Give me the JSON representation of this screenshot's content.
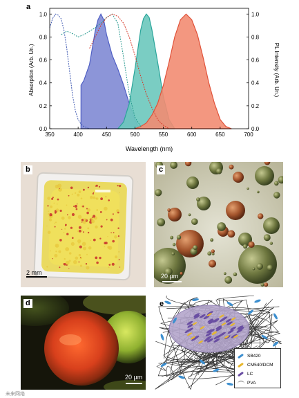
{
  "panels": {
    "a": {
      "label": "a"
    },
    "b": {
      "label": "b",
      "scale": "2 mm"
    },
    "c": {
      "label": "c",
      "scale": "20 µm"
    },
    "d": {
      "label": "d",
      "scale": "20 µm"
    },
    "e": {
      "label": "e",
      "legend": [
        {
          "label": "SB420",
          "color": "#3d8fcf"
        },
        {
          "label": "CM540/DCM",
          "color": "#e8b72e"
        },
        {
          "label": "LC",
          "color": "#6a4fa3"
        },
        {
          "label": "PVA",
          "color": "#555555"
        }
      ]
    }
  },
  "watermark": "未来网络",
  "chart_data": {
    "type": "area",
    "xlabel": "Wavelength (nm)",
    "ylabel": "Absorption (Arb. Un.)",
    "y2label": "PL Intensity (Arb. Un.)",
    "xlim": [
      350,
      700
    ],
    "ylim": [
      0,
      1.05
    ],
    "xticks": [
      "350",
      "400",
      "450",
      "500",
      "550",
      "600",
      "650",
      "700"
    ],
    "yticks": [
      "0.0",
      "0.2",
      "0.4",
      "0.6",
      "0.8",
      "1.0"
    ],
    "series": [
      {
        "kind": "emission",
        "color": "#4f5fc4",
        "fill": "#7f89d4",
        "x": [
          405,
          410,
          420,
          430,
          435,
          440,
          445,
          450,
          460,
          470,
          480,
          490,
          500,
          505,
          510
        ],
        "y": [
          0.38,
          0.42,
          0.56,
          0.85,
          0.95,
          1.0,
          0.95,
          0.82,
          0.64,
          0.52,
          0.38,
          0.22,
          0.08,
          0.03,
          0
        ]
      },
      {
        "kind": "emission",
        "color": "#2aa59a",
        "fill": "#6cc8bd",
        "x": [
          470,
          480,
          490,
          500,
          510,
          515,
          520,
          525,
          530,
          540,
          550,
          560,
          570
        ],
        "y": [
          0,
          0.06,
          0.22,
          0.52,
          0.86,
          0.96,
          1.0,
          0.97,
          0.86,
          0.58,
          0.28,
          0.08,
          0
        ]
      },
      {
        "kind": "emission",
        "color": "#e0523a",
        "fill": "#f28c72",
        "x": [
          500,
          510,
          520,
          530,
          540,
          550,
          560,
          570,
          580,
          590,
          600,
          610,
          620,
          630,
          640,
          650,
          660,
          670
        ],
        "y": [
          0,
          0.02,
          0.05,
          0.12,
          0.22,
          0.38,
          0.58,
          0.8,
          0.95,
          1.0,
          0.95,
          0.82,
          0.62,
          0.4,
          0.22,
          0.08,
          0.02,
          0
        ]
      },
      {
        "kind": "absorption",
        "color": "#3a55b0",
        "x": [
          350,
          355,
          360,
          365,
          370,
          375,
          380,
          385,
          390,
          395,
          400,
          405,
          410,
          415,
          420
        ],
        "y": [
          0.88,
          0.96,
          1.0,
          0.99,
          0.96,
          0.86,
          0.7,
          0.5,
          0.3,
          0.16,
          0.08,
          0.04,
          0.02,
          0.01,
          0
        ]
      },
      {
        "kind": "absorption",
        "color": "#2a9a90",
        "x": [
          370,
          380,
          390,
          400,
          410,
          420,
          430,
          440,
          450,
          460,
          470,
          480,
          490,
          500,
          510
        ],
        "y": [
          0.82,
          0.85,
          0.83,
          0.8,
          0.82,
          0.85,
          0.88,
          0.92,
          0.97,
          1.0,
          0.92,
          0.62,
          0.3,
          0.1,
          0.02
        ]
      },
      {
        "kind": "absorption",
        "color": "#d63a2a",
        "x": [
          420,
          430,
          440,
          450,
          460,
          470,
          480,
          490,
          500,
          510,
          520,
          530,
          540,
          550,
          560
        ],
        "y": [
          0.7,
          0.8,
          0.9,
          0.97,
          1.0,
          0.98,
          0.92,
          0.8,
          0.64,
          0.46,
          0.3,
          0.18,
          0.08,
          0.03,
          0
        ]
      }
    ]
  }
}
